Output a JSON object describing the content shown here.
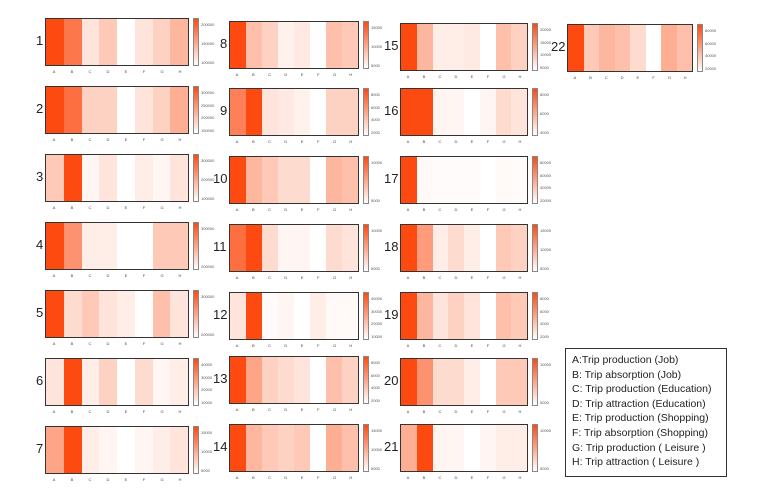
{
  "chart_data": {
    "type": "heatmap",
    "categories": [
      "A",
      "B",
      "C",
      "D",
      "E",
      "F",
      "G",
      "H"
    ],
    "color_scale": {
      "low": "#ffffff",
      "high": "#fc4a10"
    },
    "value_note": "relative intensity 0-1 within each panel",
    "panels": [
      {
        "label": "1",
        "values": [
          1,
          0.75,
          0.15,
          0.3,
          0,
          0.15,
          0.25,
          0.4
        ],
        "colorbar_ticks": [
          "200000",
          "150000",
          "100000"
        ]
      },
      {
        "label": "2",
        "values": [
          1,
          0.8,
          0.25,
          0.25,
          0,
          0.15,
          0.25,
          0.45
        ],
        "colorbar_ticks": [
          "300000",
          "250000",
          "200000",
          "150000"
        ]
      },
      {
        "label": "3",
        "values": [
          0.3,
          1,
          0.05,
          0.15,
          0,
          0.1,
          0.05,
          0.15
        ],
        "colorbar_ticks": [
          "300000",
          "200000",
          "100000"
        ]
      },
      {
        "label": "4",
        "values": [
          1,
          0.6,
          0.1,
          0.1,
          0,
          0,
          0.3,
          0.3
        ],
        "colorbar_ticks": [
          "300000",
          "200000"
        ]
      },
      {
        "label": "5",
        "values": [
          1,
          0.2,
          0.3,
          0.15,
          0.1,
          0,
          0.35,
          0.15
        ],
        "colorbar_ticks": [
          "300000",
          "200000"
        ]
      },
      {
        "label": "6",
        "values": [
          0.15,
          1,
          0.1,
          0.25,
          0,
          0.2,
          0.05,
          0.1
        ],
        "colorbar_ticks": [
          "40000",
          "30000",
          "20000",
          "10000"
        ]
      },
      {
        "label": "7",
        "values": [
          0.5,
          1,
          0.1,
          0.05,
          0,
          0.05,
          0.1,
          0.15
        ],
        "colorbar_ticks": [
          "15000",
          "10000",
          "5000"
        ]
      },
      {
        "label": "8",
        "values": [
          1,
          0.35,
          0.25,
          0.08,
          0.12,
          0,
          0.35,
          0.3
        ],
        "colorbar_ticks": [
          "15000",
          "10000",
          "5000"
        ]
      },
      {
        "label": "9",
        "values": [
          0.7,
          1,
          0.15,
          0.12,
          0.08,
          0,
          0.25,
          0.25
        ],
        "colorbar_ticks": [
          "8000",
          "6000",
          "4000",
          "2000"
        ]
      },
      {
        "label": "10",
        "values": [
          1,
          0.4,
          0.3,
          0.2,
          0.2,
          0,
          0.4,
          0.35
        ],
        "colorbar_ticks": [
          "10000",
          "5000"
        ]
      },
      {
        "label": "11",
        "values": [
          0.8,
          1,
          0.2,
          0.05,
          0.05,
          0,
          0.2,
          0.15
        ],
        "colorbar_ticks": [
          "10000",
          "5000"
        ]
      },
      {
        "label": "12",
        "values": [
          0.15,
          1,
          0.02,
          0.05,
          0,
          0.1,
          0.03,
          0.03
        ],
        "colorbar_ticks": [
          "40000",
          "30000",
          "20000",
          "10000"
        ]
      },
      {
        "label": "13",
        "values": [
          1,
          0.5,
          0.25,
          0.2,
          0.15,
          0,
          0.35,
          0.25
        ],
        "colorbar_ticks": [
          "8000",
          "6000",
          "4000",
          "2000"
        ]
      },
      {
        "label": "14",
        "values": [
          1,
          0.4,
          0.3,
          0.25,
          0.3,
          0,
          0.45,
          0.35
        ],
        "colorbar_ticks": [
          "15000",
          "10000",
          "5000"
        ]
      },
      {
        "label": "15",
        "values": [
          1,
          0.4,
          0.1,
          0.1,
          0.12,
          0,
          0.35,
          0.25
        ],
        "colorbar_ticks": [
          "20000",
          "15000",
          "10000",
          "5000"
        ]
      },
      {
        "label": "16",
        "values": [
          1,
          1,
          0.05,
          0.05,
          0,
          0.05,
          0.2,
          0.15
        ],
        "colorbar_ticks": [
          "8000",
          "6000",
          "4000"
        ]
      },
      {
        "label": "17",
        "values": [
          1,
          0.03,
          0.02,
          0.02,
          0.02,
          0,
          0.03,
          0.02
        ],
        "colorbar_ticks": [
          "80000",
          "60000",
          "40000",
          "20000"
        ]
      },
      {
        "label": "18",
        "values": [
          1,
          0.55,
          0.1,
          0.2,
          0.1,
          0,
          0.3,
          0.25
        ],
        "colorbar_ticks": [
          "15000",
          "10000",
          "5000"
        ]
      },
      {
        "label": "19",
        "values": [
          1,
          0.4,
          0.15,
          0.25,
          0.15,
          0,
          0.35,
          0.3
        ],
        "colorbar_ticks": [
          "8000",
          "6000",
          "4000",
          "2000"
        ]
      },
      {
        "label": "20",
        "values": [
          1,
          0.6,
          0.2,
          0.2,
          0.1,
          0,
          0.3,
          0.3
        ],
        "colorbar_ticks": [
          "10000",
          "5000"
        ]
      },
      {
        "label": "21",
        "values": [
          0.45,
          1,
          0.05,
          0.05,
          0,
          0.05,
          0.1,
          0.1
        ],
        "colorbar_ticks": [
          "10000",
          "5000"
        ]
      },
      {
        "label": "22",
        "values": [
          1,
          0.3,
          0.4,
          0.35,
          0.2,
          0,
          0.45,
          0.35
        ],
        "colorbar_ticks": [
          "80000",
          "60000",
          "40000",
          "20000"
        ]
      }
    ],
    "legend": [
      "A:Trip production (Job)",
      "B: Trip absorption (Job)",
      "C: Trip production (Education)",
      "D: Trip attraction (Education)",
      "E: Trip production (Shopping)",
      "F: Trip absorption (Shopping)",
      "G: Trip production ( Leisure )",
      "H: Trip attraction ( Leisure )"
    ]
  }
}
